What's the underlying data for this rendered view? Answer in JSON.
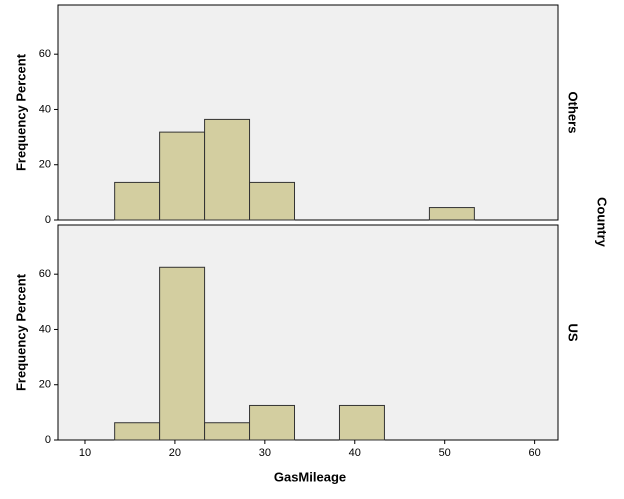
{
  "chart_data": {
    "type": "histogram",
    "x_label": "GasMileage",
    "y_label": "Frequency Percent",
    "facet_label": "Country",
    "bins": [
      13.3,
      18.3,
      23.3,
      28.3,
      33.3,
      38.3,
      43.3,
      48.3,
      53.3
    ],
    "series": [
      {
        "name": "Others",
        "color": "#d3cea0",
        "values": [
          13.6,
          31.8,
          36.4,
          13.6,
          0,
          0,
          0,
          4.5
        ]
      },
      {
        "name": "US",
        "color": "#d3cea0",
        "values": [
          6.25,
          62.5,
          6.25,
          12.5,
          0,
          12.5,
          0,
          0
        ]
      }
    ],
    "xlim": [
      7,
      62.6
    ],
    "xticks": [
      10,
      20,
      30,
      40,
      50,
      60
    ],
    "ylim": [
      0,
      77.8
    ],
    "yticks": [
      0,
      20,
      40,
      60
    ],
    "grid": false
  }
}
